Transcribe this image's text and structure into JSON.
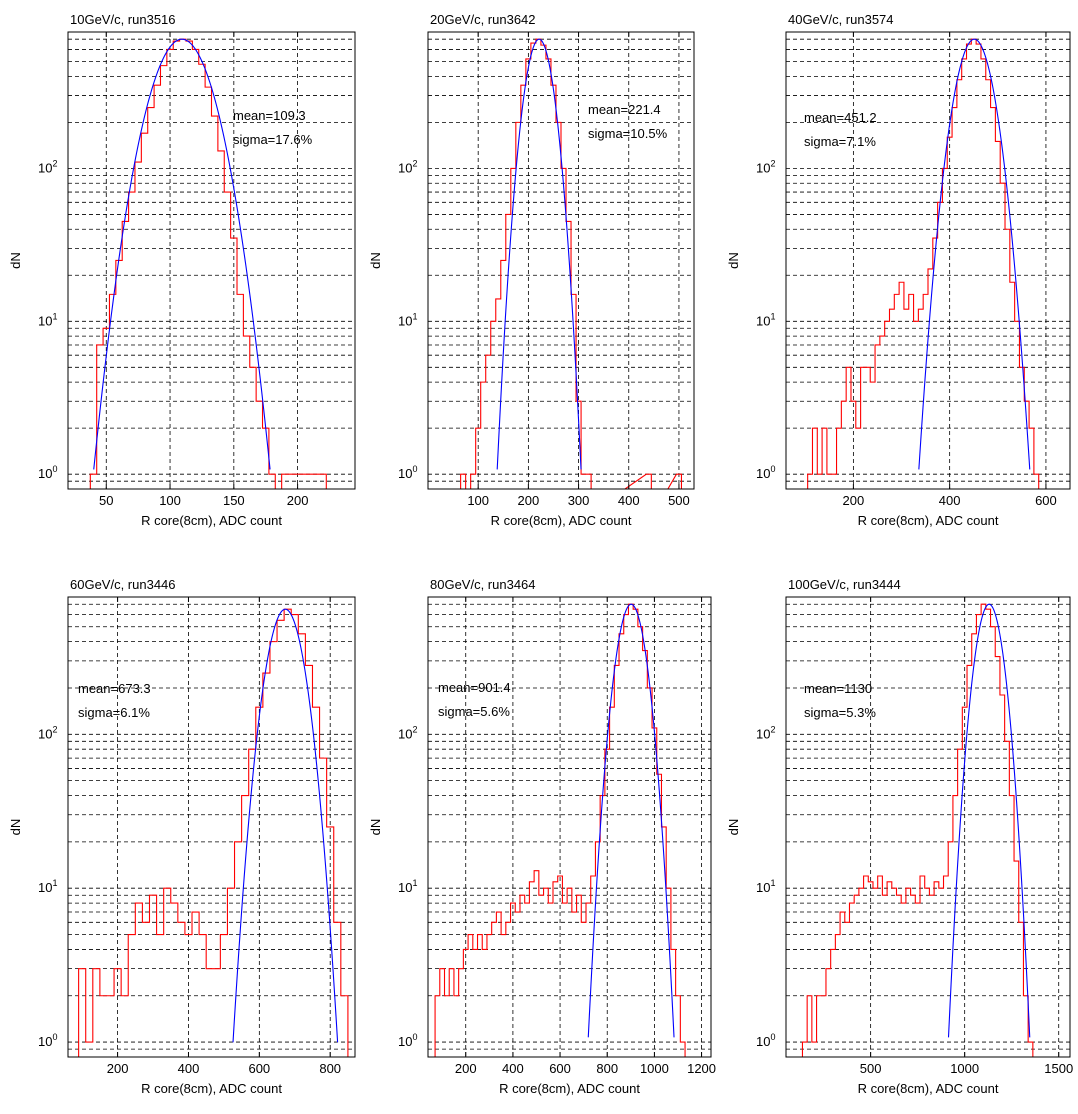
{
  "chart_data": [
    {
      "type": "line",
      "title": "10GeV/c, run3516",
      "xlabel": "R core(8cm), ADC count",
      "ylabel": "dN",
      "yscale": "log",
      "grid": true,
      "xlim": [
        20,
        245
      ],
      "ylim": [
        0.8,
        780
      ],
      "xticks": [
        50,
        100,
        150,
        200
      ],
      "yticks": [
        1,
        10,
        100
      ],
      "ytick_labels": [
        [
          "10",
          "0"
        ],
        [
          "10",
          "1"
        ],
        [
          "10",
          "2"
        ]
      ],
      "annotations": [
        "mean=109.3",
        "sigma=17.6%"
      ],
      "fit": {
        "mean": 109.3,
        "sigma": 19.2,
        "peak": 700,
        "color": "#0000ff"
      },
      "histogram": {
        "color": "#ff0000",
        "x": [
          40,
          45,
          50,
          55,
          60,
          65,
          70,
          75,
          80,
          85,
          90,
          95,
          100,
          105,
          110,
          115,
          120,
          125,
          130,
          135,
          140,
          145,
          150,
          155,
          160,
          165,
          170,
          175,
          180,
          185,
          190,
          220,
          225
        ],
        "y": [
          1,
          7,
          9,
          15,
          25,
          45,
          70,
          110,
          170,
          250,
          350,
          470,
          600,
          680,
          700,
          680,
          600,
          480,
          340,
          220,
          130,
          70,
          35,
          15,
          8,
          5,
          3,
          2,
          1,
          0,
          1,
          1,
          0
        ]
      }
    },
    {
      "type": "line",
      "title": "20GeV/c, run3642",
      "xlabel": "R core(8cm), ADC count",
      "ylabel": "dN",
      "yscale": "log",
      "grid": true,
      "xlim": [
        0,
        530
      ],
      "ylim": [
        0.8,
        780
      ],
      "xticks": [
        100,
        200,
        300,
        400,
        500
      ],
      "yticks": [
        1,
        10,
        100
      ],
      "ytick_labels": [
        [
          "10",
          "0"
        ],
        [
          "10",
          "1"
        ],
        [
          "10",
          "2"
        ]
      ],
      "annotations": [
        "mean=221.4",
        "sigma=10.5%"
      ],
      "fit": {
        "mean": 221.4,
        "sigma": 23.2,
        "peak": 700,
        "color": "#0000ff"
      },
      "histogram": {
        "color": "#ff0000",
        "x": [
          70,
          80,
          90,
          100,
          110,
          120,
          130,
          140,
          150,
          160,
          170,
          180,
          190,
          200,
          210,
          220,
          230,
          240,
          250,
          260,
          270,
          280,
          290,
          300,
          310,
          320,
          330,
          440,
          450,
          500,
          510
        ],
        "y": [
          1,
          0,
          1,
          2,
          4,
          6,
          10,
          14,
          25,
          50,
          100,
          200,
          350,
          520,
          660,
          700,
          640,
          520,
          350,
          200,
          100,
          45,
          15,
          3,
          1,
          1,
          0,
          1,
          0,
          1,
          0
        ]
      }
    },
    {
      "type": "line",
      "title": "40GeV/c, run3574",
      "xlabel": "R core(8cm), ADC count",
      "ylabel": "dN",
      "yscale": "log",
      "grid": true,
      "xlim": [
        60,
        650
      ],
      "ylim": [
        0.8,
        780
      ],
      "xticks": [
        200,
        400,
        600
      ],
      "yticks": [
        1,
        10,
        100
      ],
      "ytick_labels": [
        [
          "10",
          "0"
        ],
        [
          "10",
          "1"
        ],
        [
          "10",
          "2"
        ]
      ],
      "annotations": [
        "mean=451.2",
        "sigma=7.1%"
      ],
      "fit": {
        "mean": 451.2,
        "sigma": 32,
        "peak": 700,
        "color": "#0000ff"
      },
      "histogram": {
        "color": "#ff0000",
        "x": [
          110,
          120,
          130,
          140,
          150,
          160,
          170,
          180,
          190,
          200,
          210,
          220,
          230,
          240,
          250,
          260,
          270,
          280,
          290,
          300,
          310,
          320,
          330,
          340,
          350,
          360,
          370,
          380,
          390,
          400,
          410,
          420,
          430,
          440,
          450,
          460,
          470,
          480,
          490,
          500,
          510,
          520,
          530,
          540,
          550,
          560,
          570,
          580,
          590
        ],
        "y": [
          1,
          2,
          1,
          2,
          1,
          1,
          2,
          3,
          5,
          3,
          2,
          5,
          5,
          4,
          7,
          8,
          10,
          12,
          15,
          18,
          12,
          15,
          10,
          12,
          15,
          22,
          35,
          60,
          100,
          160,
          250,
          380,
          520,
          650,
          700,
          650,
          520,
          380,
          250,
          150,
          80,
          40,
          18,
          10,
          5,
          3,
          2,
          1,
          0
        ]
      }
    },
    {
      "type": "line",
      "title": "60GeV/c, run3446",
      "xlabel": "R core(8cm), ADC count",
      "ylabel": "dN",
      "yscale": "log",
      "grid": true,
      "xlim": [
        60,
        870
      ],
      "ylim": [
        0.8,
        780
      ],
      "xticks": [
        200,
        400,
        600,
        800
      ],
      "yticks": [
        1,
        10,
        100
      ],
      "ytick_labels": [
        [
          "10",
          "0"
        ],
        [
          "10",
          "1"
        ],
        [
          "10",
          "2"
        ]
      ],
      "annotations": [
        "mean=673.3",
        "sigma=6.1%"
      ],
      "fit": {
        "mean": 673.3,
        "sigma": 41,
        "peak": 650,
        "color": "#0000ff"
      },
      "histogram": {
        "color": "#ff0000",
        "x": [
          100,
          120,
          140,
          160,
          180,
          200,
          220,
          240,
          260,
          280,
          300,
          320,
          340,
          360,
          380,
          400,
          420,
          440,
          460,
          480,
          500,
          520,
          540,
          560,
          580,
          600,
          620,
          640,
          660,
          680,
          700,
          720,
          740,
          760,
          780,
          800,
          820,
          840
        ],
        "y": [
          3,
          1,
          3,
          2,
          2,
          3,
          2,
          5,
          8,
          6,
          9,
          5,
          10,
          8,
          6,
          5,
          7,
          5,
          3,
          3,
          5,
          10,
          20,
          40,
          80,
          150,
          250,
          400,
          550,
          650,
          600,
          450,
          280,
          150,
          70,
          25,
          6,
          2
        ]
      }
    },
    {
      "type": "line",
      "title": "80GeV/c, run3464",
      "xlabel": "R core(8cm), ADC count",
      "ylabel": "dN",
      "yscale": "log",
      "grid": true,
      "xlim": [
        40,
        1240
      ],
      "ylim": [
        0.8,
        780
      ],
      "xticks": [
        200,
        400,
        600,
        800,
        1000,
        1200
      ],
      "yticks": [
        1,
        10,
        100
      ],
      "ytick_labels": [
        [
          "10",
          "0"
        ],
        [
          "10",
          "1"
        ],
        [
          "10",
          "2"
        ]
      ],
      "annotations": [
        "mean=901.4",
        "sigma=5.6%"
      ],
      "fit": {
        "mean": 901.4,
        "sigma": 50.5,
        "peak": 700,
        "color": "#0000ff"
      },
      "histogram": {
        "color": "#ff0000",
        "x": [
          80,
          100,
          120,
          140,
          160,
          180,
          200,
          220,
          240,
          260,
          280,
          300,
          320,
          340,
          360,
          380,
          400,
          420,
          440,
          460,
          480,
          500,
          520,
          540,
          560,
          580,
          600,
          620,
          640,
          660,
          680,
          700,
          720,
          740,
          760,
          780,
          800,
          820,
          840,
          860,
          880,
          900,
          920,
          940,
          960,
          980,
          1000,
          1020,
          1040,
          1060,
          1080,
          1100,
          1120
        ],
        "y": [
          2,
          3,
          2,
          3,
          2,
          3,
          4,
          5,
          4,
          5,
          4,
          5,
          6,
          7,
          5,
          6,
          8,
          7,
          9,
          8,
          11,
          13,
          9,
          10,
          8,
          11,
          12,
          8,
          10,
          7,
          9,
          6,
          8,
          12,
          20,
          40,
          80,
          150,
          280,
          450,
          600,
          700,
          650,
          500,
          350,
          200,
          110,
          55,
          25,
          10,
          4,
          2,
          1
        ]
      }
    },
    {
      "type": "line",
      "title": "100GeV/c, run3444",
      "xlabel": "R core(8cm), ADC count",
      "ylabel": "dN",
      "yscale": "log",
      "grid": true,
      "xlim": [
        50,
        1560
      ],
      "ylim": [
        0.8,
        780
      ],
      "xticks": [
        500,
        1000,
        1500
      ],
      "yticks": [
        1,
        10,
        100
      ],
      "ytick_labels": [
        [
          "10",
          "0"
        ],
        [
          "10",
          "1"
        ],
        [
          "10",
          "2"
        ]
      ],
      "annotations": [
        "mean=1130",
        "sigma=5.3%"
      ],
      "fit": {
        "mean": 1130,
        "sigma": 60,
        "peak": 700,
        "color": "#0000ff"
      },
      "histogram": {
        "color": "#ff0000",
        "x": [
          150,
          175,
          200,
          225,
          250,
          275,
          300,
          325,
          350,
          375,
          400,
          425,
          450,
          475,
          500,
          525,
          550,
          575,
          600,
          625,
          650,
          675,
          700,
          725,
          750,
          775,
          800,
          825,
          850,
          875,
          900,
          925,
          950,
          975,
          1000,
          1025,
          1050,
          1075,
          1100,
          1125,
          1150,
          1175,
          1200,
          1225,
          1250,
          1275,
          1300,
          1325,
          1350
        ],
        "y": [
          1,
          2,
          1,
          2,
          2,
          3,
          4,
          5,
          7,
          6,
          8,
          9,
          10,
          12,
          11,
          10,
          12,
          9,
          11,
          10,
          9,
          8,
          10,
          9,
          8,
          12,
          10,
          9,
          11,
          10,
          12,
          20,
          40,
          80,
          150,
          280,
          450,
          600,
          700,
          650,
          500,
          320,
          180,
          90,
          40,
          15,
          6,
          2,
          1
        ]
      }
    }
  ]
}
